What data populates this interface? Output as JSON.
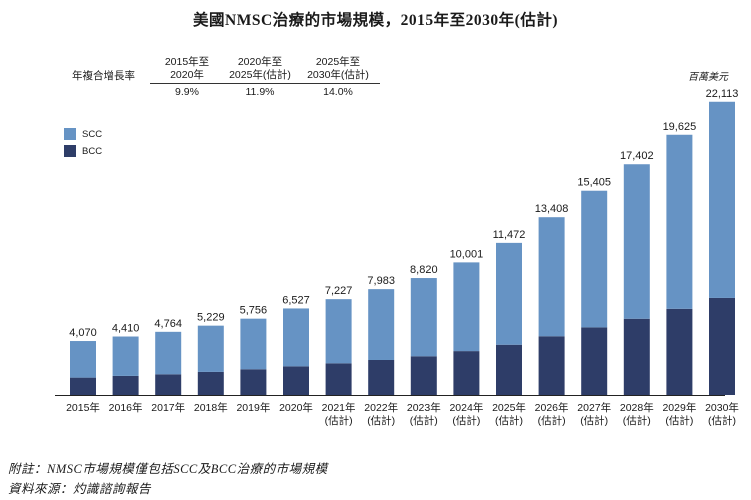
{
  "chart_data": {
    "type": "bar",
    "stacked": true,
    "title": "美國NMSC治療的市場規模，2015年至2030年(估計)",
    "unit_label": "百萬美元",
    "categories": [
      "2015年",
      "2016年",
      "2017年",
      "2018年",
      "2019年",
      "2020年",
      "2021年",
      "2022年",
      "2023年",
      "2024年",
      "2025年",
      "2026年",
      "2027年",
      "2028年",
      "2029年",
      "2030年"
    ],
    "estimate_note": "(估計)",
    "estimate_from_index": 6,
    "totals": [
      4070,
      4410,
      4764,
      5229,
      5756,
      6527,
      7227,
      7983,
      8820,
      10001,
      11472,
      13408,
      15405,
      17402,
      19625,
      22113
    ],
    "total_labels": [
      "4,070",
      "4,410",
      "4,764",
      "5,229",
      "5,756",
      "6,527",
      "7,227",
      "7,983",
      "8,820",
      "10,001",
      "11,472",
      "13,408",
      "15,405",
      "17,402",
      "19,625",
      "22,113"
    ],
    "series": [
      {
        "name": "BCC",
        "color": "#2e3d68",
        "values": [
          1310,
          1440,
          1560,
          1740,
          1940,
          2160,
          2390,
          2640,
          2920,
          3310,
          3790,
          4430,
          5100,
          5750,
          6500,
          7320
        ]
      },
      {
        "name": "SCC",
        "color": "#6693c4",
        "values": [
          2760,
          2970,
          3204,
          3489,
          3816,
          4367,
          4837,
          5343,
          5900,
          6691,
          7682,
          8978,
          10305,
          11652,
          13125,
          14793
        ]
      }
    ],
    "ylim": [
      0,
      23000
    ],
    "legend": [
      "SCC",
      "BCC"
    ],
    "legend_position": "top-left"
  },
  "cagr": {
    "row_label": "年複合增長率",
    "periods": [
      {
        "line1": "2015年至",
        "line2": "2020年",
        "value": "9.9%"
      },
      {
        "line1": "2020年至",
        "line2": "2025年(估計)",
        "value": "11.9%"
      },
      {
        "line1": "2025年至",
        "line2": "2030年(估計)",
        "value": "14.0%"
      }
    ]
  },
  "footnotes": {
    "note": "附註：NMSC市場規模僅包括SCC及BCC治療的市場規模",
    "source": "資料來源：灼識諮詢報告"
  },
  "colors": {
    "scc": "#6693c4",
    "bcc": "#2e3d68"
  }
}
